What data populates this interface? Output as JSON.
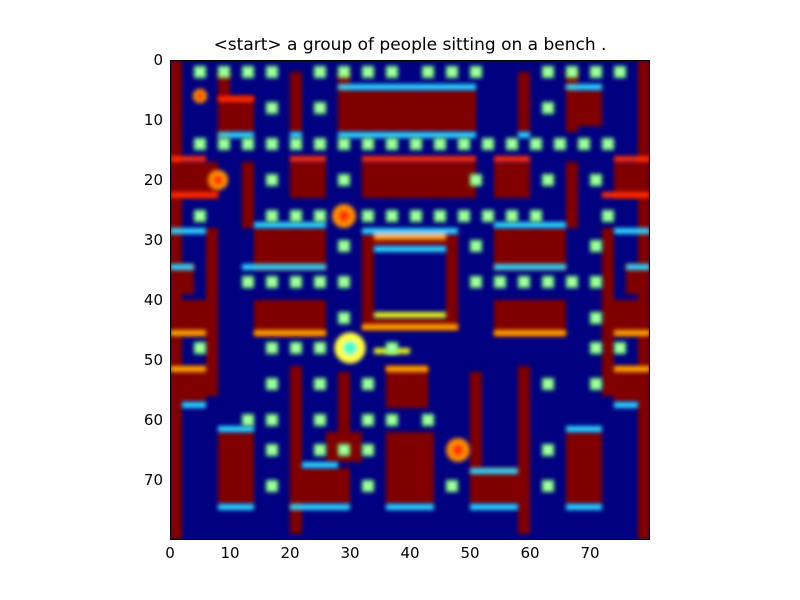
{
  "title": "<start> a group of people sitting on a bench .",
  "axes": {
    "x_ticks": [
      "0",
      "10",
      "20",
      "30",
      "40",
      "50",
      "60",
      "70"
    ],
    "y_ticks": [
      "0",
      "10",
      "20",
      "30",
      "40",
      "50",
      "60",
      "70"
    ],
    "x_range": [
      0,
      80
    ],
    "y_range": [
      0,
      80
    ]
  },
  "colors": {
    "background": "#000080",
    "wall": "#800000",
    "wall_edge_warm": "#ff2a00",
    "wall_edge_orange": "#ffa500",
    "wall_edge_cool": "#2fd5ff",
    "wall_edge_yellow": "#e6f51a",
    "pellet": "#7dff7a",
    "pellet_core": "#b8ffb0",
    "sprite_pacman": "#ffff40",
    "sprite_ghost": "#ff8c00"
  },
  "game": {
    "walls": [
      [
        0,
        0,
        2,
        80
      ],
      [
        78,
        0,
        2,
        80
      ],
      [
        8,
        2,
        2,
        11
      ],
      [
        20,
        2,
        2,
        10
      ],
      [
        28,
        2,
        2,
        10
      ],
      [
        58,
        2,
        2,
        10
      ],
      [
        66,
        2,
        2,
        10
      ],
      [
        8,
        6,
        6,
        6
      ],
      [
        28,
        5,
        23,
        7
      ],
      [
        66,
        5,
        6,
        6
      ],
      [
        0,
        17,
        6,
        6
      ],
      [
        20,
        17,
        6,
        6
      ],
      [
        32,
        17,
        19,
        6
      ],
      [
        54,
        17,
        6,
        6
      ],
      [
        74,
        17,
        6,
        6
      ],
      [
        6,
        17,
        2,
        6
      ],
      [
        12,
        17,
        2,
        11
      ],
      [
        66,
        17,
        2,
        11
      ],
      [
        14,
        28,
        12,
        7
      ],
      [
        54,
        28,
        12,
        7
      ],
      [
        0,
        34,
        4,
        5
      ],
      [
        76,
        34,
        4,
        5
      ],
      [
        32,
        29,
        2,
        16
      ],
      [
        46,
        29,
        2,
        16
      ],
      [
        32,
        29,
        16,
        2
      ],
      [
        32,
        43,
        16,
        2
      ],
      [
        0,
        40,
        6,
        6
      ],
      [
        14,
        40,
        12,
        6
      ],
      [
        54,
        40,
        12,
        6
      ],
      [
        74,
        40,
        6,
        6
      ],
      [
        6,
        28,
        2,
        28
      ],
      [
        72,
        28,
        2,
        28
      ],
      [
        20,
        51,
        2,
        28
      ],
      [
        58,
        51,
        2,
        28
      ],
      [
        0,
        51,
        6,
        6
      ],
      [
        36,
        51,
        7,
        7
      ],
      [
        74,
        51,
        6,
        6
      ],
      [
        28,
        52,
        2,
        10
      ],
      [
        50,
        52,
        2,
        10
      ],
      [
        8,
        62,
        6,
        12
      ],
      [
        20,
        62,
        2,
        12
      ],
      [
        26,
        62,
        6,
        5
      ],
      [
        36,
        62,
        8,
        12
      ],
      [
        50,
        62,
        2,
        12
      ],
      [
        66,
        62,
        6,
        12
      ],
      [
        20,
        68,
        10,
        6
      ],
      [
        50,
        68,
        8,
        6
      ]
    ],
    "edges_warm": [
      [
        0,
        16,
        6,
        1
      ],
      [
        20,
        16,
        6,
        1
      ],
      [
        32,
        16,
        19,
        1
      ],
      [
        54,
        16,
        6,
        1
      ],
      [
        74,
        16,
        6,
        1
      ],
      [
        0,
        22,
        8,
        1
      ],
      [
        72,
        22,
        8,
        1
      ],
      [
        8,
        6,
        6,
        1
      ]
    ],
    "edges_orange": [
      [
        34,
        29,
        12,
        1
      ],
      [
        32,
        44,
        16,
        1
      ],
      [
        0,
        45,
        6,
        1
      ],
      [
        74,
        45,
        6,
        1
      ],
      [
        14,
        45,
        12,
        1
      ],
      [
        54,
        45,
        12,
        1
      ],
      [
        0,
        51,
        6,
        1
      ],
      [
        74,
        51,
        6,
        1
      ],
      [
        36,
        51,
        7,
        1
      ]
    ],
    "edges_cool": [
      [
        28,
        4,
        23,
        1
      ],
      [
        66,
        4,
        6,
        1
      ],
      [
        8,
        12,
        6,
        1
      ],
      [
        28,
        12,
        23,
        1
      ],
      [
        58,
        12,
        2,
        1
      ],
      [
        20,
        12,
        2,
        1
      ],
      [
        0,
        28,
        6,
        1
      ],
      [
        74,
        28,
        6,
        1
      ],
      [
        14,
        27,
        12,
        1
      ],
      [
        54,
        27,
        12,
        1
      ],
      [
        32,
        28,
        16,
        1
      ],
      [
        0,
        34,
        4,
        1
      ],
      [
        76,
        34,
        4,
        1
      ],
      [
        12,
        34,
        14,
        1
      ],
      [
        54,
        34,
        12,
        1
      ],
      [
        2,
        57,
        4,
        1
      ],
      [
        74,
        57,
        4,
        1
      ],
      [
        8,
        61,
        6,
        1
      ],
      [
        66,
        61,
        6,
        1
      ],
      [
        8,
        74,
        6,
        1
      ],
      [
        20,
        74,
        10,
        1
      ],
      [
        36,
        74,
        8,
        1
      ],
      [
        50,
        74,
        8,
        1
      ],
      [
        66,
        74,
        6,
        1
      ],
      [
        22,
        67,
        6,
        1
      ],
      [
        50,
        68,
        8,
        1
      ],
      [
        34,
        31,
        12,
        1
      ]
    ],
    "edges_yellow": [
      [
        34,
        42,
        12,
        1
      ],
      [
        34,
        48,
        6,
        1
      ]
    ],
    "pellets": [
      [
        5,
        2
      ],
      [
        9,
        2
      ],
      [
        13,
        2
      ],
      [
        17,
        2
      ],
      [
        25,
        2
      ],
      [
        29,
        2
      ],
      [
        33,
        2
      ],
      [
        37,
        2
      ],
      [
        43,
        2
      ],
      [
        47,
        2
      ],
      [
        51,
        2
      ],
      [
        63,
        2
      ],
      [
        67,
        2
      ],
      [
        71,
        2
      ],
      [
        75,
        2
      ],
      [
        17,
        8
      ],
      [
        25,
        8
      ],
      [
        63,
        8
      ],
      [
        5,
        14
      ],
      [
        9,
        14
      ],
      [
        13,
        14
      ],
      [
        17,
        14
      ],
      [
        21,
        14
      ],
      [
        25,
        14
      ],
      [
        29,
        14
      ],
      [
        33,
        14
      ],
      [
        37,
        14
      ],
      [
        41,
        14
      ],
      [
        45,
        14
      ],
      [
        49,
        14
      ],
      [
        53,
        14
      ],
      [
        57,
        14
      ],
      [
        61,
        14
      ],
      [
        65,
        14
      ],
      [
        69,
        14
      ],
      [
        73,
        14
      ],
      [
        17,
        20
      ],
      [
        29,
        20
      ],
      [
        51,
        20
      ],
      [
        63,
        20
      ],
      [
        71,
        20
      ],
      [
        5,
        26
      ],
      [
        17,
        26
      ],
      [
        21,
        26
      ],
      [
        25,
        26
      ],
      [
        33,
        26
      ],
      [
        37,
        26
      ],
      [
        41,
        26
      ],
      [
        45,
        26
      ],
      [
        49,
        26
      ],
      [
        53,
        26
      ],
      [
        57,
        26
      ],
      [
        61,
        26
      ],
      [
        73,
        26
      ],
      [
        29,
        31
      ],
      [
        51,
        31
      ],
      [
        71,
        31
      ],
      [
        13,
        37
      ],
      [
        17,
        37
      ],
      [
        21,
        37
      ],
      [
        25,
        37
      ],
      [
        29,
        37
      ],
      [
        51,
        37
      ],
      [
        55,
        37
      ],
      [
        59,
        37
      ],
      [
        63,
        37
      ],
      [
        67,
        37
      ],
      [
        71,
        37
      ],
      [
        29,
        43
      ],
      [
        71,
        43
      ],
      [
        5,
        48
      ],
      [
        17,
        48
      ],
      [
        21,
        48
      ],
      [
        25,
        48
      ],
      [
        37,
        48
      ],
      [
        71,
        48
      ],
      [
        75,
        48
      ],
      [
        17,
        54
      ],
      [
        25,
        54
      ],
      [
        33,
        54
      ],
      [
        63,
        54
      ],
      [
        71,
        54
      ],
      [
        13,
        60
      ],
      [
        17,
        60
      ],
      [
        25,
        60
      ],
      [
        33,
        60
      ],
      [
        37,
        60
      ],
      [
        43,
        60
      ],
      [
        17,
        65
      ],
      [
        25,
        65
      ],
      [
        29,
        65
      ],
      [
        33,
        65
      ],
      [
        63,
        65
      ],
      [
        17,
        71
      ],
      [
        33,
        71
      ],
      [
        47,
        71
      ],
      [
        63,
        71
      ]
    ],
    "sprites": [
      {
        "kind": "pacman",
        "x": 30,
        "y": 48,
        "r": 2.6
      },
      {
        "kind": "ghost",
        "x": 29,
        "y": 26,
        "r": 2.0
      },
      {
        "kind": "ghost",
        "x": 48,
        "y": 65,
        "r": 2.0
      },
      {
        "kind": "ghost",
        "x": 8,
        "y": 20,
        "r": 1.7
      },
      {
        "kind": "ghost",
        "x": 5,
        "y": 6,
        "r": 1.2
      }
    ]
  }
}
